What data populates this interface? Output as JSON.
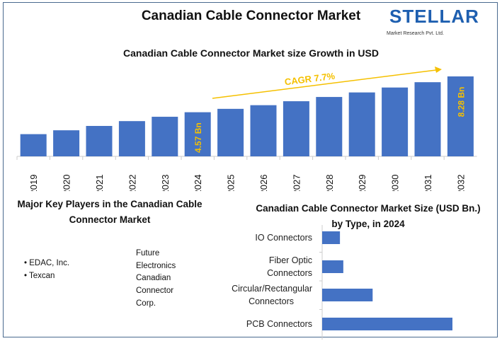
{
  "title": "Canadian Cable Connector Market",
  "logo": {
    "name": "STELLAR",
    "tagline": "Market Research Pvt. Ltd."
  },
  "chart_data": [
    {
      "type": "bar",
      "title": "Canadian Cable Connector Market size Growth in USD",
      "categories": [
        "2019",
        "2020",
        "2021",
        "2022",
        "2023",
        "2024",
        "2025",
        "2026",
        "2027",
        "2028",
        "2029",
        "2030",
        "2031",
        "2032"
      ],
      "values": [
        2.3,
        2.7,
        3.15,
        3.65,
        4.1,
        4.57,
        4.92,
        5.3,
        5.71,
        6.15,
        6.62,
        7.13,
        7.68,
        8.28
      ],
      "data_labels": {
        "2024": "4.57 Bn",
        "2032": "8.28 Bn"
      },
      "annotation": "CAGR 7.7%",
      "ylim": [
        0,
        8.5
      ],
      "color": "#4472c4",
      "label_color": "#f5c000"
    },
    {
      "type": "bar",
      "orientation": "horizontal",
      "title": "Canadian Cable Connector Market Size (USD Bn.) by Type, in 2024",
      "categories": [
        "IO Connectors",
        "Fiber Optic Connectors",
        "Circular/Rectangular Connectors",
        "PCB Connectors"
      ],
      "category_lines": [
        [
          "IO Connectors"
        ],
        [
          "Fiber Optic",
          "Connectors"
        ],
        [
          "Circular/Rectangular",
          "Connectors"
        ],
        [
          "PCB Connectors"
        ]
      ],
      "values": [
        0.37,
        0.44,
        1.05,
        2.71
      ],
      "color": "#4472c4"
    }
  ],
  "players": {
    "title": "Major Key Players in the Canadian Cable Connector Market",
    "left": [
      "EDAC, Inc.",
      "Texcan"
    ],
    "right": [
      "Future",
      "Electronics",
      "Canadian",
      "Connector",
      "Corp."
    ]
  }
}
